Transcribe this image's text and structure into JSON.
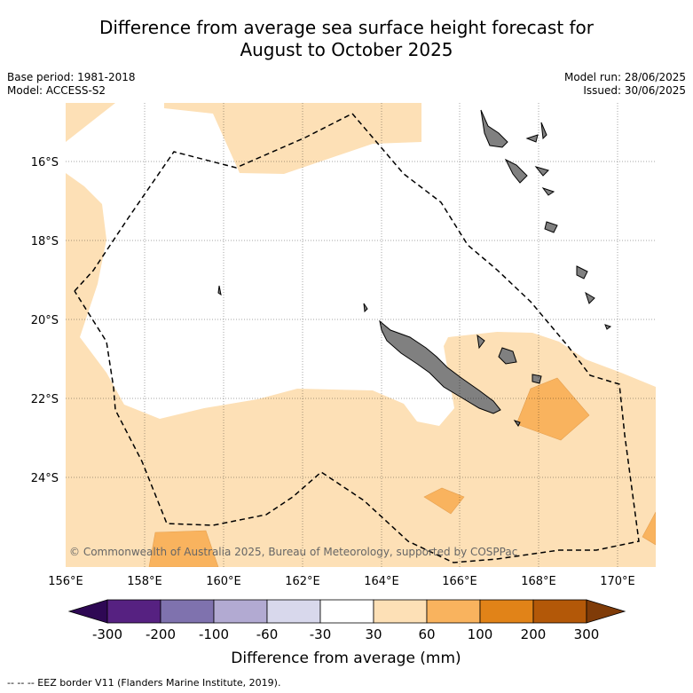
{
  "title_line1": "Difference from average sea surface height forecast for",
  "title_line2": "August to October 2025",
  "base_period": "Base period: 1981-2018",
  "model": "Model: ACCESS-S2",
  "model_run": "Model run: 28/06/2025",
  "issued": "Issued: 30/06/2025",
  "copyright": "© Commonwealth of Australia 2025, Bureau of Meteorology, supported by COSPPac",
  "lat_labels": [
    "16°S",
    "18°S",
    "20°S",
    "22°S",
    "24°S"
  ],
  "lon_labels": [
    "156°E",
    "158°E",
    "160°E",
    "162°E",
    "164°E",
    "166°E",
    "168°E",
    "170°E"
  ],
  "colorbar": {
    "ticks": [
      "-300",
      "-200",
      "-100",
      "-60",
      "-30",
      "30",
      "60",
      "100",
      "200",
      "300"
    ],
    "colors": [
      "#2e0854",
      "#562181",
      "#7f72ae",
      "#b2aad2",
      "#d8d8ec",
      "#ffffff",
      "#fde0b6",
      "#f9b35e",
      "#e18318",
      "#b35808",
      "#7f3b08"
    ],
    "label": "Difference from average (mm)"
  },
  "legend_footer": "--  --  -- EEZ border V11 (Flanders Marine Institute, 2019).",
  "palette": {
    "land": "#808080",
    "light_orange": "#fde0b6",
    "medium_orange": "#f9b35e",
    "eez_border": "#000000"
  }
}
